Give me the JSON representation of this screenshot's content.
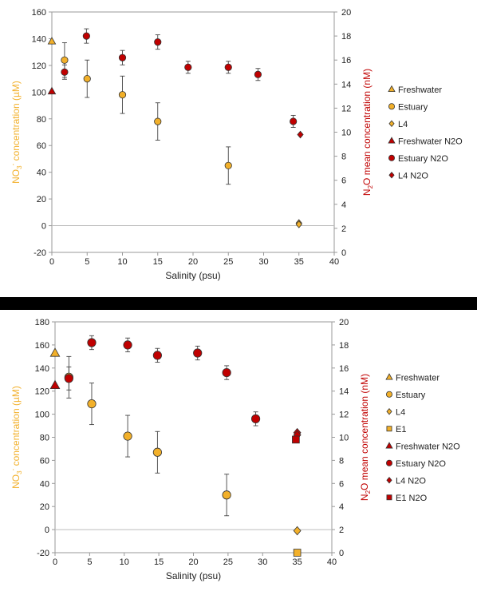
{
  "chart_data": [
    {
      "type": "scatter",
      "title": "",
      "xlabel": "Salinity (psu)",
      "ylabel_left": "NO3- concentration (µM)",
      "ylabel_left_parts": [
        "NO",
        "3",
        "-",
        " concentration (µM)"
      ],
      "ylabel_right": "N2O mean concentration (nM)",
      "ylabel_right_parts": [
        "N",
        "2",
        "O mean concentration (nM)"
      ],
      "xlim": [
        0,
        40
      ],
      "xticks": [
        0,
        5,
        10,
        15,
        20,
        25,
        30,
        35,
        40
      ],
      "ylim_left": [
        -20,
        160
      ],
      "yticks_left": [
        -20,
        0,
        20,
        40,
        60,
        80,
        100,
        120,
        140,
        160
      ],
      "ylim_right": [
        0,
        20
      ],
      "yticks_right": [
        0,
        2,
        4,
        6,
        8,
        10,
        12,
        14,
        16,
        18,
        20
      ],
      "grid": false,
      "legend_position": "right",
      "series": [
        {
          "name": "Freshwater",
          "axis": "left",
          "marker": "triangle",
          "color": "#f2b02a",
          "points": [
            {
              "x": 0,
              "y": 138
            }
          ]
        },
        {
          "name": "Estuary",
          "axis": "left",
          "marker": "circle",
          "color": "#f2b02a",
          "points": [
            {
              "x": 1.8,
              "y": 124,
              "err": 13
            },
            {
              "x": 5,
              "y": 110,
              "err": 14
            },
            {
              "x": 10,
              "y": 98,
              "err": 14
            },
            {
              "x": 15,
              "y": 78,
              "err": 14
            },
            {
              "x": 25,
              "y": 45,
              "err": 14
            }
          ]
        },
        {
          "name": "L4",
          "axis": "left",
          "marker": "diamond",
          "color": "#f2b02a",
          "points": [
            {
              "x": 35,
              "y": 2
            },
            {
              "x": 35,
              "y": 1
            }
          ]
        },
        {
          "name": "Freshwater N2O",
          "axis": "right",
          "marker": "triangle",
          "color": "#c00000",
          "points": [
            {
              "x": 0,
              "y": 13.4
            }
          ]
        },
        {
          "name": "Estuary N2O",
          "axis": "right",
          "marker": "circle",
          "color": "#c00000",
          "points": [
            {
              "x": 1.8,
              "y": 15.0,
              "err": 0.6
            },
            {
              "x": 4.9,
              "y": 18.0,
              "err": 0.6
            },
            {
              "x": 10,
              "y": 16.2,
              "err": 0.6
            },
            {
              "x": 15,
              "y": 17.5,
              "err": 0.6
            },
            {
              "x": 19.3,
              "y": 15.4,
              "err": 0.5
            },
            {
              "x": 25,
              "y": 15.4,
              "err": 0.5
            },
            {
              "x": 29.2,
              "y": 14.8,
              "err": 0.5
            },
            {
              "x": 34.2,
              "y": 10.9,
              "err": 0.5
            }
          ]
        },
        {
          "name": "L4 N2O",
          "axis": "right",
          "marker": "diamond",
          "color": "#c00000",
          "points": [
            {
              "x": 35.2,
              "y": 9.8
            }
          ]
        }
      ]
    },
    {
      "type": "scatter",
      "title": "",
      "xlabel": "Salinity (psu)",
      "ylabel_left": "NO3- concentration (µM)",
      "ylabel_left_parts": [
        "NO",
        "3",
        "-",
        " concentration (µM)"
      ],
      "ylabel_right": "N2O mean concentration (nM)",
      "ylabel_right_parts": [
        "N",
        "2",
        "O mean concentration (nM)"
      ],
      "xlim": [
        0,
        40
      ],
      "xticks": [
        0,
        5,
        10,
        15,
        20,
        25,
        30,
        35,
        40
      ],
      "ylim_left": [
        -20,
        180
      ],
      "yticks_left": [
        -20,
        0,
        20,
        40,
        60,
        80,
        100,
        120,
        140,
        160,
        180
      ],
      "ylim_right": [
        0,
        20
      ],
      "yticks_right": [
        0,
        2,
        4,
        6,
        8,
        10,
        12,
        14,
        16,
        18,
        20
      ],
      "grid": false,
      "legend_position": "right",
      "series": [
        {
          "name": "Freshwater",
          "axis": "left",
          "marker": "triangle",
          "color": "#f2b02a",
          "points": [
            {
              "x": 0,
              "y": 153
            }
          ]
        },
        {
          "name": "Estuary",
          "axis": "left",
          "marker": "circle",
          "color": "#f2b02a",
          "points": [
            {
              "x": 2,
              "y": 132,
              "err": 18
            },
            {
              "x": 5.3,
              "y": 109,
              "err": 18
            },
            {
              "x": 10.5,
              "y": 81,
              "err": 18
            },
            {
              "x": 14.8,
              "y": 67,
              "err": 18
            },
            {
              "x": 24.8,
              "y": 30,
              "err": 18
            }
          ]
        },
        {
          "name": "L4",
          "axis": "left",
          "marker": "diamond",
          "color": "#f2b02a",
          "points": [
            {
              "x": 35,
              "y": -1
            }
          ]
        },
        {
          "name": "E1",
          "axis": "left",
          "marker": "square",
          "color": "#f2b02a",
          "points": [
            {
              "x": 35,
              "y": -20
            }
          ]
        },
        {
          "name": "Freshwater N2O",
          "axis": "right",
          "marker": "triangle",
          "color": "#c00000",
          "points": [
            {
              "x": 0,
              "y": 14.5
            }
          ]
        },
        {
          "name": "Estuary N2O",
          "axis": "right",
          "marker": "circle",
          "color": "#c00000",
          "points": [
            {
              "x": 2,
              "y": 15.1,
              "err": 1.0
            },
            {
              "x": 5.3,
              "y": 18.2,
              "err": 0.6
            },
            {
              "x": 10.5,
              "y": 18.0,
              "err": 0.6
            },
            {
              "x": 14.8,
              "y": 17.1,
              "err": 0.6
            },
            {
              "x": 20.6,
              "y": 17.3,
              "err": 0.6
            },
            {
              "x": 24.8,
              "y": 15.6,
              "err": 0.6
            },
            {
              "x": 29,
              "y": 11.6,
              "err": 0.6
            }
          ]
        },
        {
          "name": "L4 N2O",
          "axis": "right",
          "marker": "diamond",
          "color": "#c00000",
          "points": [
            {
              "x": 35,
              "y": 10.4
            },
            {
              "x": 35,
              "y": 10.2
            }
          ]
        },
        {
          "name": "E1 N2O",
          "axis": "right",
          "marker": "square",
          "color": "#c00000",
          "points": [
            {
              "x": 34.8,
              "y": 9.8
            }
          ]
        }
      ]
    }
  ]
}
